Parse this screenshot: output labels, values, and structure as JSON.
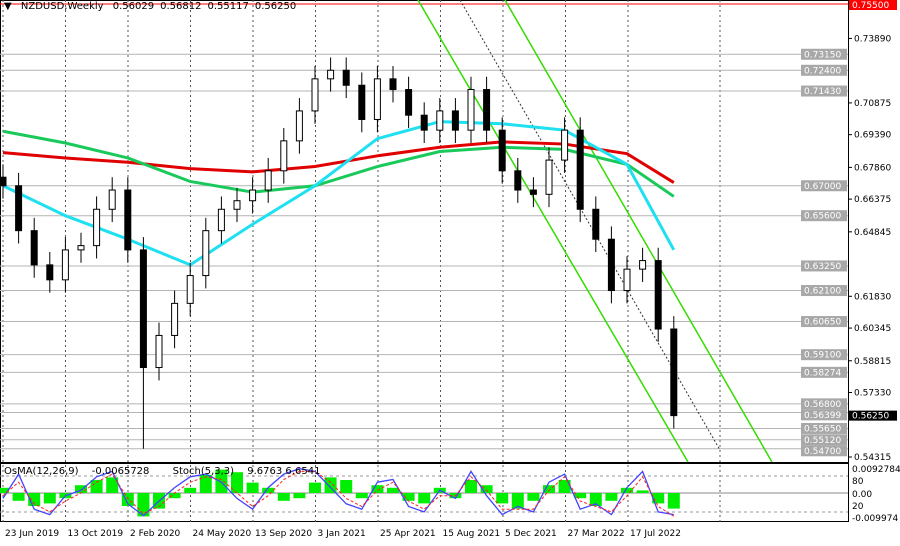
{
  "header": {
    "symbol": "NZDUSD,Weekly",
    "ohlc": [
      "0.56029",
      "0.56812",
      "0.55117",
      "0.56250"
    ]
  },
  "indicators": {
    "osma_label": "OsMA(12,26,9)",
    "osma_value": "-0.0065728",
    "stoch_label": "Stoch(5,3,3)",
    "stoch_values": "9.6763 6.6541"
  },
  "colors": {
    "bull": "#000000",
    "bear": "#000000",
    "ma_red": "#e00000",
    "ma_green": "#19c95a",
    "ma_cyan": "#1ee0f0",
    "channel": "#33dd00",
    "level_line": "#b4b4b4",
    "level_label_bg": "#a8a8a8",
    "resistance": "#ff0000",
    "osma": "#00ee00",
    "stoch_main": "#4444ff",
    "stoch_signal": "#ff2222"
  },
  "chart_data": {
    "type": "candlestick",
    "title": "NZDUSD,Weekly",
    "ylim": [
      0.54315,
      0.755
    ],
    "y_ticks": [
      "0.73890",
      "0.70875",
      "0.69390",
      "0.67860",
      "0.66375",
      "0.64845",
      "0.61830",
      "0.60345",
      "0.58815",
      "0.57330",
      "0.54315"
    ],
    "x_tick_labels": [
      "23 Jun 2019",
      "13 Oct 2019",
      "2 Feb 2020",
      "24 May 2020",
      "13 Sep 2020",
      "3 Jan 2021",
      "25 Apr 2021",
      "15 Aug 2021",
      "5 Dec 2021",
      "27 Mar 2022",
      "17 Jul 2022"
    ],
    "period_start": "2019-06-23",
    "period_step_weeks": 4,
    "close": [
      0.67,
      0.649,
      0.633,
      0.626,
      0.64,
      0.642,
      0.659,
      0.668,
      0.64,
      0.585,
      0.6,
      0.615,
      0.628,
      0.649,
      0.659,
      0.663,
      0.668,
      0.677,
      0.691,
      0.705,
      0.72,
      0.724,
      0.717,
      0.701,
      0.72,
      0.715,
      0.703,
      0.696,
      0.705,
      0.696,
      0.715,
      0.696,
      0.677,
      0.668,
      0.666,
      0.682,
      0.696,
      0.659,
      0.645,
      0.621,
      0.631,
      0.635,
      0.603,
      0.5625
    ],
    "low_extreme": {
      "index": 9,
      "value": 0.547
    },
    "moving_averages": {
      "sample_index": [
        0,
        4,
        8,
        12,
        16,
        20,
        24,
        28,
        32,
        36,
        40,
        43
      ],
      "red": [
        0.6855,
        0.683,
        0.681,
        0.678,
        0.6765,
        0.679,
        0.684,
        0.688,
        0.6905,
        0.6895,
        0.685,
        0.6715
      ],
      "green": [
        0.6955,
        0.69,
        0.683,
        0.672,
        0.667,
        0.67,
        0.679,
        0.686,
        0.688,
        0.687,
        0.68,
        0.665
      ],
      "cyan": [
        0.67,
        0.656,
        0.645,
        0.633,
        0.652,
        0.67,
        0.692,
        0.7,
        0.699,
        0.696,
        0.68,
        0.64
      ]
    },
    "levels": [
      "0.73150",
      "0.72400",
      "0.71430",
      "0.67000",
      "0.65600",
      "0.63250",
      "0.62100",
      "0.60650",
      "0.59100",
      "0.58274",
      "0.56800",
      "0.56399",
      "0.55650",
      "0.55120",
      "0.54700"
    ],
    "resistance_level": "0.75500",
    "current_price": "0.56250",
    "oscillator": {
      "y_labels": [
        "0.0092784",
        "80",
        "0.00",
        "20",
        "-0.009974"
      ],
      "osma": [
        0.2,
        -0.3,
        -0.5,
        -0.4,
        -0.2,
        0.3,
        0.5,
        0.6,
        -0.5,
        -0.9,
        -0.6,
        -0.2,
        0.2,
        0.7,
        0.9,
        0.8,
        0.4,
        0.2,
        -0.3,
        -0.2,
        0.4,
        0.6,
        0.5,
        -0.2,
        0.3,
        0.2,
        -0.3,
        -0.4,
        0.2,
        -0.2,
        0.5,
        0.3,
        -0.4,
        -0.6,
        -0.3,
        0.3,
        0.5,
        -0.2,
        -0.5,
        -0.3,
        0.2,
        0.1,
        -0.4,
        -0.6
      ],
      "stoch_main": [
        40,
        85,
        20,
        10,
        45,
        55,
        80,
        90,
        30,
        8,
        35,
        60,
        80,
        85,
        70,
        40,
        20,
        60,
        85,
        95,
        90,
        60,
        30,
        20,
        70,
        75,
        25,
        15,
        55,
        40,
        90,
        45,
        10,
        25,
        15,
        70,
        85,
        20,
        30,
        10,
        60,
        90,
        15,
        10
      ],
      "stoch_signal": [
        45,
        70,
        30,
        15,
        35,
        50,
        70,
        85,
        40,
        12,
        25,
        50,
        70,
        80,
        75,
        50,
        25,
        45,
        75,
        90,
        90,
        70,
        40,
        25,
        55,
        70,
        35,
        20,
        45,
        45,
        80,
        55,
        20,
        20,
        20,
        55,
        80,
        35,
        25,
        15,
        45,
        80,
        25,
        7
      ]
    }
  }
}
